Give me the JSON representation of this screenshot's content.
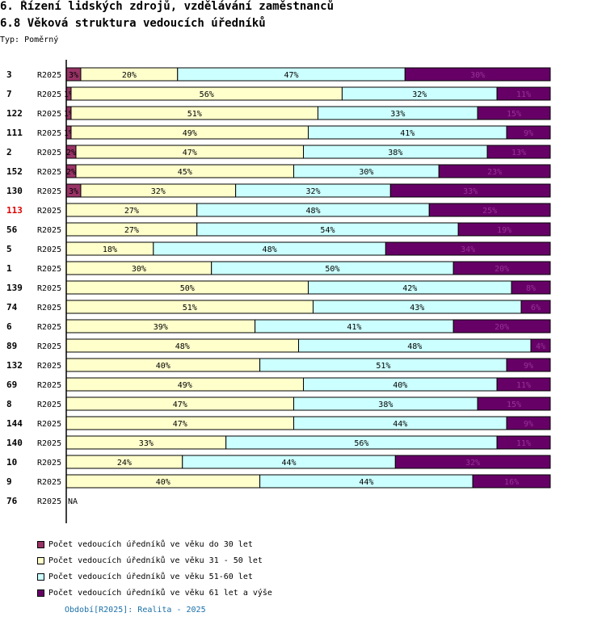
{
  "header": {
    "title": "6. Řízení lidských zdrojů, vzdělávání zaměstnanců",
    "subtitle": "6.8 Věková struktura vedoucích úředníků",
    "type_label": "Typ: Poměrný"
  },
  "footer": {
    "period": "Období[R2025]: Realita - 2025"
  },
  "chart_data": {
    "type": "bar",
    "orientation": "horizontal",
    "stacked": true,
    "normalized": true,
    "period_label": "R2025",
    "highlight_color": "#dd0000",
    "na_label": "NA",
    "categories": [
      "3",
      "7",
      "122",
      "111",
      "2",
      "152",
      "130",
      "113",
      "56",
      "5",
      "1",
      "139",
      "74",
      "6",
      "89",
      "132",
      "69",
      "8",
      "144",
      "140",
      "10",
      "9",
      "76"
    ],
    "highlighted": [
      "113"
    ],
    "series": [
      {
        "name": "Počet vedoucích úředníků ve věku do 30 let",
        "color": "#993366",
        "text_color": "#000000",
        "values": [
          3,
          1,
          1,
          1,
          2,
          2,
          3,
          0,
          0,
          0,
          0,
          0,
          0,
          0,
          0,
          0,
          0,
          0,
          0,
          0,
          0,
          0,
          null
        ]
      },
      {
        "name": "Počet vedoucích úředníků ve věku 31 - 50 let",
        "color": "#ffffcc",
        "text_color": "#000000",
        "values": [
          20,
          56,
          51,
          49,
          47,
          45,
          32,
          27,
          27,
          18,
          30,
          50,
          51,
          39,
          48,
          40,
          49,
          47,
          47,
          33,
          24,
          40,
          null
        ]
      },
      {
        "name": "Počet vedoucích úředníků ve věku 51-60 let",
        "color": "#ccffff",
        "text_color": "#000000",
        "values": [
          47,
          32,
          33,
          41,
          38,
          30,
          32,
          48,
          54,
          48,
          50,
          42,
          43,
          41,
          48,
          51,
          40,
          38,
          44,
          56,
          44,
          44,
          null
        ]
      },
      {
        "name": "Počet vedoucích úředníků ve věku 61 let a výše",
        "color": "#660066",
        "text_color": "#993399",
        "values": [
          30,
          11,
          15,
          9,
          13,
          23,
          33,
          25,
          19,
          34,
          20,
          8,
          6,
          20,
          4,
          9,
          11,
          15,
          9,
          11,
          32,
          16,
          null
        ]
      }
    ],
    "xlim": [
      0,
      100
    ]
  }
}
